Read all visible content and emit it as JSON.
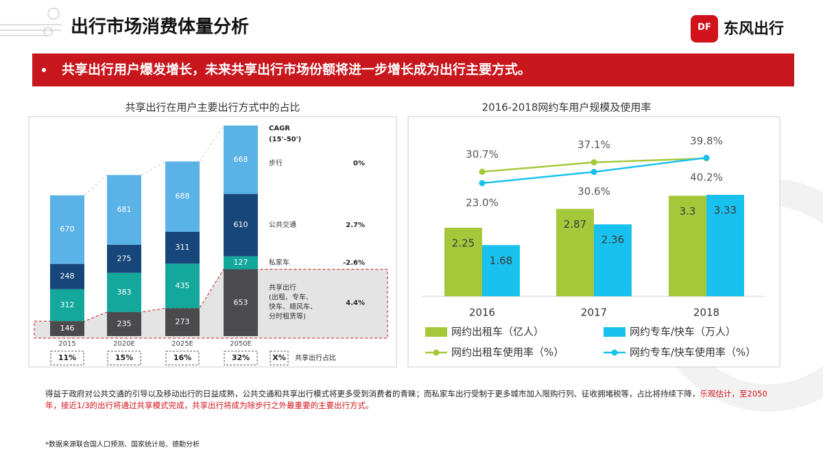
{
  "header": {
    "title": "出行市场消费体量分析",
    "logo_mark": "DF",
    "logo_text": "东风出行"
  },
  "banner": "共享出行用户爆发增长，未来共享出行市场份额将进一步增长成为出行主要方式。",
  "body": {
    "text": "得益于政府对公共交通的引导以及移动出行的日益成熟，公共交通和共享出行模式将更多受到消费者的青睐；而私家车出行受制于更多城市加入限购行列、征收拥堵税等，占比将持续下降，",
    "highlight": "乐观估计，至2050年，接近1/3的出行将通过共享模式完成，共享出行将成为除步行之外最重要的主要出行方式。"
  },
  "footnote": "*数据来源联合国人口预测、国家统计局、德勤分析",
  "chart_data": [
    {
      "type": "stacked-bar",
      "title": "共享出行在用户主要出行方式中的占比",
      "categories": [
        "2015",
        "2020E",
        "2025E",
        "2050E"
      ],
      "cagr_title": "CAGR",
      "cagr_subtitle": "(15'-50')",
      "series": [
        {
          "name": "共享出行",
          "note": [
            "(出租、专车、",
            "快车、顺风车、",
            "分时租赁等)"
          ],
          "cagr": "4.4%",
          "color": "#4b4b4d",
          "values": [
            146,
            235,
            273,
            653
          ]
        },
        {
          "name": "私家车",
          "cagr": "-2.6%",
          "color": "#14a79b",
          "values": [
            312,
            383,
            435,
            127
          ]
        },
        {
          "name": "公共交通",
          "cagr": "2.7%",
          "color": "#17477a",
          "values": [
            248,
            275,
            311,
            610
          ]
        },
        {
          "name": "步行",
          "cagr": "0%",
          "color": "#5ab2e6",
          "values": [
            670,
            681,
            688,
            668
          ]
        }
      ],
      "share_labels": [
        "11%",
        "15%",
        "16%",
        "32%"
      ],
      "share_legend_mark": "X%",
      "share_legend": "共享出行占比"
    },
    {
      "type": "bar-line",
      "title": "2016-2018网约车用户规模及使用率",
      "categories": [
        "2016",
        "2017",
        "2018"
      ],
      "series": [
        {
          "name": "网约出租车（亿人）",
          "color": "#a5c83b",
          "values": [
            2.25,
            2.87,
            3.3
          ]
        },
        {
          "name": "网约专车/快车（万人）",
          "color": "#19c1ee",
          "values": [
            1.68,
            2.36,
            3.33
          ]
        },
        {
          "name": "网约出租车使用率（%）",
          "axis": "y2",
          "color": "#a5c83b",
          "values": [
            30.7,
            37.1,
            39.8
          ],
          "value_labels": [
            "30.7%",
            "37.1%",
            "39.8%"
          ]
        },
        {
          "name": "网约专车/快车使用率（%）",
          "axis": "y2",
          "color": "#19c1ee",
          "values": [
            23.0,
            30.6,
            40.2
          ],
          "value_labels": [
            "23.0%",
            "30.6%",
            "40.2%"
          ]
        }
      ]
    }
  ]
}
